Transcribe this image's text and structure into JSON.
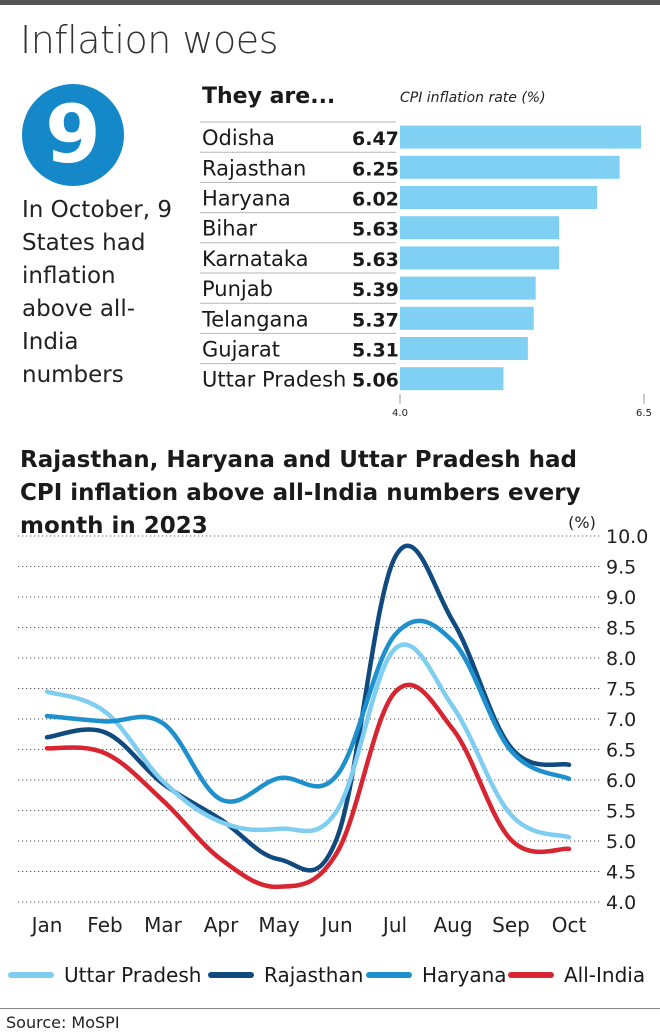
{
  "header": {
    "title": "Inflation woes"
  },
  "callout": {
    "number": "9",
    "text": "In October, 9 States had inflation above all-India numbers"
  },
  "chart_data": [
    {
      "type": "bar",
      "orientation": "horizontal",
      "heading": "They are...",
      "title": "CPI inflation rate (%)",
      "categories": [
        "Odisha",
        "Rajasthan",
        "Haryana",
        "Bihar",
        "Karnataka",
        "Punjab",
        "Telangana",
        "Gujarat",
        "Uttar Pradesh"
      ],
      "values": [
        6.47,
        6.25,
        6.02,
        5.63,
        5.63,
        5.39,
        5.37,
        5.31,
        5.06
      ],
      "value_labels": [
        "6.47",
        "6.25",
        "6.02",
        "5.63",
        "5.63",
        "5.39",
        "5.37",
        "5.31",
        "5.06"
      ],
      "xlim": [
        4.0,
        6.5
      ],
      "xticks": [
        "4.0",
        "6.5"
      ],
      "bar_color": "#7fd0f2"
    },
    {
      "type": "line",
      "title": "Rajasthan, Haryana and Uttar Pradesh had CPI inflation above all-India numbers every month in 2023",
      "ylabel": "(%)",
      "x": [
        "Jan",
        "Feb",
        "Mar",
        "Apr",
        "May",
        "Jun",
        "Jul",
        "Aug",
        "Sep",
        "Oct"
      ],
      "ylim": [
        4.0,
        10.0
      ],
      "yticks": [
        "10.0",
        "9.5",
        "9.0",
        "8.5",
        "8.0",
        "7.5",
        "7.0",
        "6.5",
        "6.0",
        "5.5",
        "5.0",
        "4.5",
        "4.0"
      ],
      "grid": "horizontal-dotted",
      "legend_position": "bottom",
      "series": [
        {
          "name": "Uttar Pradesh",
          "color": "#7fcdf0",
          "values": [
            7.45,
            7.12,
            5.98,
            5.31,
            5.2,
            5.5,
            8.15,
            7.2,
            5.43,
            5.06
          ]
        },
        {
          "name": "Rajasthan",
          "color": "#104a7e",
          "values": [
            6.7,
            6.78,
            5.94,
            5.35,
            4.7,
            5.05,
            9.65,
            8.6,
            6.53,
            6.25
          ]
        },
        {
          "name": "Haryana",
          "color": "#1e90cd",
          "values": [
            7.05,
            6.96,
            6.93,
            5.68,
            6.03,
            6.08,
            8.38,
            8.27,
            6.48,
            6.02
          ]
        },
        {
          "name": "All-India",
          "color": "#d72631",
          "values": [
            6.52,
            6.44,
            5.66,
            4.7,
            4.25,
            4.81,
            7.44,
            6.83,
            5.02,
            4.87
          ]
        }
      ]
    }
  ],
  "footer": {
    "source": "Source: MoSPI"
  }
}
